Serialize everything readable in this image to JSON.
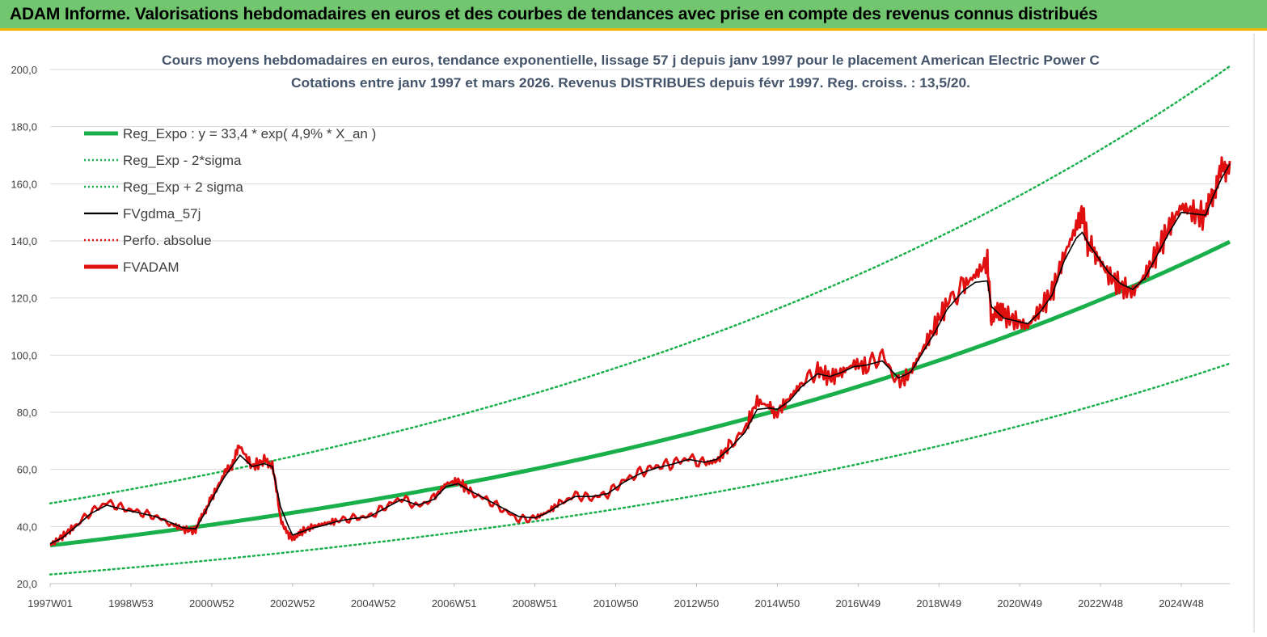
{
  "header": {
    "title": "ADAM Informe. Valorisations hebdomadaires en euros et des courbes de tendances avec prise en compte des revenus connus distribués"
  },
  "chart_data": {
    "type": "line",
    "title": "Cours moyens hebdomadaires en euros, tendance exponentielle, lissage 57 j depuis janv 1997  pour le placement American Electric Power C",
    "subtitle": "Cotations entre janv 1997 et mars 2026. Revenus  DISTRIBUES depuis févr  1997. Reg. croiss. : 13,5/20.",
    "x_range": [
      1997.0,
      2026.2
    ],
    "ylim": [
      20,
      200
    ],
    "y_ticks": [
      "20,0",
      "40,0",
      "60,0",
      "80,0",
      "100,0",
      "120,0",
      "140,0",
      "160,0",
      "180,0",
      "200,0"
    ],
    "x_ticks": [
      {
        "label": "1997W01",
        "x": 1997.0
      },
      {
        "label": "1998W53",
        "x": 1999.0
      },
      {
        "label": "2000W52",
        "x": 2001.0
      },
      {
        "label": "2002W52",
        "x": 2003.0
      },
      {
        "label": "2004W52",
        "x": 2005.0
      },
      {
        "label": "2006W51",
        "x": 2007.0
      },
      {
        "label": "2008W51",
        "x": 2009.0
      },
      {
        "label": "2010W50",
        "x": 2011.0
      },
      {
        "label": "2012W50",
        "x": 2013.0
      },
      {
        "label": "2014W50",
        "x": 2015.0
      },
      {
        "label": "2016W49",
        "x": 2017.0
      },
      {
        "label": "2018W49",
        "x": 2019.0
      },
      {
        "label": "2020W49",
        "x": 2021.0
      },
      {
        "label": "2022W48",
        "x": 2023.0
      },
      {
        "label": "2024W48",
        "x": 2025.0
      }
    ],
    "grid": "horizontal",
    "legend_position": "top-left",
    "legend": [
      {
        "name": "Reg_Expo : y = 33,4 * exp( 4,9% *  X_an )",
        "color": "#19b04b",
        "style": "thick"
      },
      {
        "name": "Reg_Exp - 2*sigma",
        "color": "#19b04b",
        "style": "dotted"
      },
      {
        "name": "Reg_Exp + 2 sigma",
        "color": "#19b04b",
        "style": "dotted"
      },
      {
        "name": "FVgdma_57j",
        "color": "#000000",
        "style": "solid"
      },
      {
        "name": "Perfo. absolue",
        "color": "#e01010",
        "style": "dotted"
      },
      {
        "name": "FVADAM",
        "color": "#e01010",
        "style": "thick"
      }
    ],
    "trend": {
      "a": 33.4,
      "rate_percent": 4.9,
      "lower_factor": 0.695,
      "upper_factor": 1.44
    },
    "series": [
      {
        "name": "FVADAM",
        "color": "#e01010",
        "x": [
          1997.0,
          1997.3,
          1997.6,
          1998.0,
          1998.4,
          1998.8,
          1999.2,
          1999.6,
          2000.0,
          2000.3,
          2000.6,
          2000.8,
          2001.0,
          2001.3,
          2001.5,
          2001.7,
          2002.0,
          2002.3,
          2002.5,
          2002.7,
          2002.9,
          2003.0,
          2003.2,
          2003.5,
          2003.8,
          2004.1,
          2004.5,
          2004.9,
          2005.3,
          2005.7,
          2006.1,
          2006.5,
          2006.8,
          2007.1,
          2007.4,
          2007.8,
          2008.2,
          2008.6,
          2009.0,
          2009.3,
          2009.6,
          2010.0,
          2010.4,
          2010.8,
          2011.2,
          2011.6,
          2012.0,
          2012.4,
          2012.8,
          2013.2,
          2013.5,
          2013.8,
          2014.2,
          2014.5,
          2014.8,
          2015.0,
          2015.3,
          2015.6,
          2016.0,
          2016.3,
          2016.6,
          2016.9,
          2017.2,
          2017.6,
          2018.0,
          2018.3,
          2018.6,
          2018.9,
          2019.2,
          2019.6,
          2019.9,
          2020.2,
          2020.3,
          2020.45,
          2020.6,
          2020.9,
          2021.2,
          2021.5,
          2021.8,
          2022.1,
          2022.4,
          2022.55,
          2022.7,
          2022.9,
          2023.2,
          2023.5,
          2023.8,
          2024.1,
          2024.4,
          2024.7,
          2025.0,
          2025.3,
          2025.6,
          2025.8,
          2026.0,
          2026.2
        ],
        "y": [
          33.5,
          36.5,
          40,
          45,
          48.5,
          46.5,
          45,
          43.5,
          41,
          39,
          38.5,
          45,
          50,
          58,
          62,
          68,
          61,
          63,
          62,
          43,
          37,
          36,
          38,
          40,
          41,
          42,
          43,
          43.5,
          47,
          50,
          47,
          50,
          55,
          56,
          52,
          49.5,
          46,
          42.5,
          43,
          45,
          48,
          51,
          50,
          51.5,
          56,
          59,
          61,
          62,
          64,
          62,
          63,
          68,
          74,
          84,
          82,
          80,
          85,
          90,
          95,
          92,
          94,
          97,
          96,
          100,
          90,
          94,
          102,
          110,
          118,
          124,
          128,
          133,
          112,
          116,
          114,
          112,
          110,
          116,
          122,
          135,
          145,
          150,
          138,
          135,
          128,
          124,
          122,
          128,
          136,
          145,
          152,
          150,
          148,
          158,
          164,
          168
        ]
      },
      {
        "name": "FVgdma_57j",
        "color": "#000000",
        "x": [
          1997.0,
          1997.3,
          1997.6,
          1998.0,
          1998.4,
          1998.8,
          1999.2,
          1999.6,
          2000.0,
          2000.3,
          2000.6,
          2000.8,
          2001.0,
          2001.3,
          2001.5,
          2001.7,
          2002.0,
          2002.3,
          2002.5,
          2002.7,
          2002.9,
          2003.0,
          2003.2,
          2003.5,
          2003.8,
          2004.1,
          2004.5,
          2004.9,
          2005.3,
          2005.7,
          2006.1,
          2006.5,
          2006.8,
          2007.1,
          2007.4,
          2007.8,
          2008.2,
          2008.6,
          2009.0,
          2009.3,
          2009.6,
          2010.0,
          2010.4,
          2010.8,
          2011.2,
          2011.6,
          2012.0,
          2012.4,
          2012.8,
          2013.2,
          2013.5,
          2013.8,
          2014.2,
          2014.5,
          2014.8,
          2015.0,
          2015.3,
          2015.6,
          2016.0,
          2016.3,
          2016.6,
          2016.9,
          2017.2,
          2017.6,
          2018.0,
          2018.3,
          2018.6,
          2018.9,
          2019.2,
          2019.6,
          2019.9,
          2020.2,
          2020.3,
          2020.45,
          2020.6,
          2020.9,
          2021.2,
          2021.5,
          2021.8,
          2022.1,
          2022.4,
          2022.55,
          2022.7,
          2022.9,
          2023.2,
          2023.5,
          2023.8,
          2024.1,
          2024.4,
          2024.7,
          2025.0,
          2025.3,
          2025.6,
          2025.8,
          2026.0,
          2026.2
        ],
        "y": [
          34,
          36,
          39.5,
          44.5,
          47.5,
          46,
          44.8,
          43.5,
          41.3,
          39.5,
          39.2,
          44,
          49.5,
          57,
          61,
          65,
          61,
          62,
          61,
          47,
          40,
          37,
          38,
          39.5,
          40.5,
          41.8,
          42.8,
          43.4,
          46.5,
          49.5,
          47.5,
          49.5,
          54,
          55,
          52.5,
          49.5,
          46.5,
          43.5,
          43,
          44.8,
          47.5,
          50.5,
          50.5,
          51.5,
          55.5,
          58.5,
          60.5,
          61.8,
          63.5,
          62.5,
          63.5,
          67,
          73,
          81,
          81.5,
          81,
          84,
          89,
          93.5,
          92.5,
          94,
          96,
          96.5,
          98,
          92,
          94,
          101,
          108,
          116,
          122.5,
          125.5,
          126,
          117,
          115,
          113,
          112,
          111,
          115,
          121,
          133,
          141,
          143,
          139,
          135,
          129,
          125,
          123,
          127,
          135,
          143,
          150,
          149.5,
          149,
          156,
          162,
          167
        ]
      }
    ]
  }
}
